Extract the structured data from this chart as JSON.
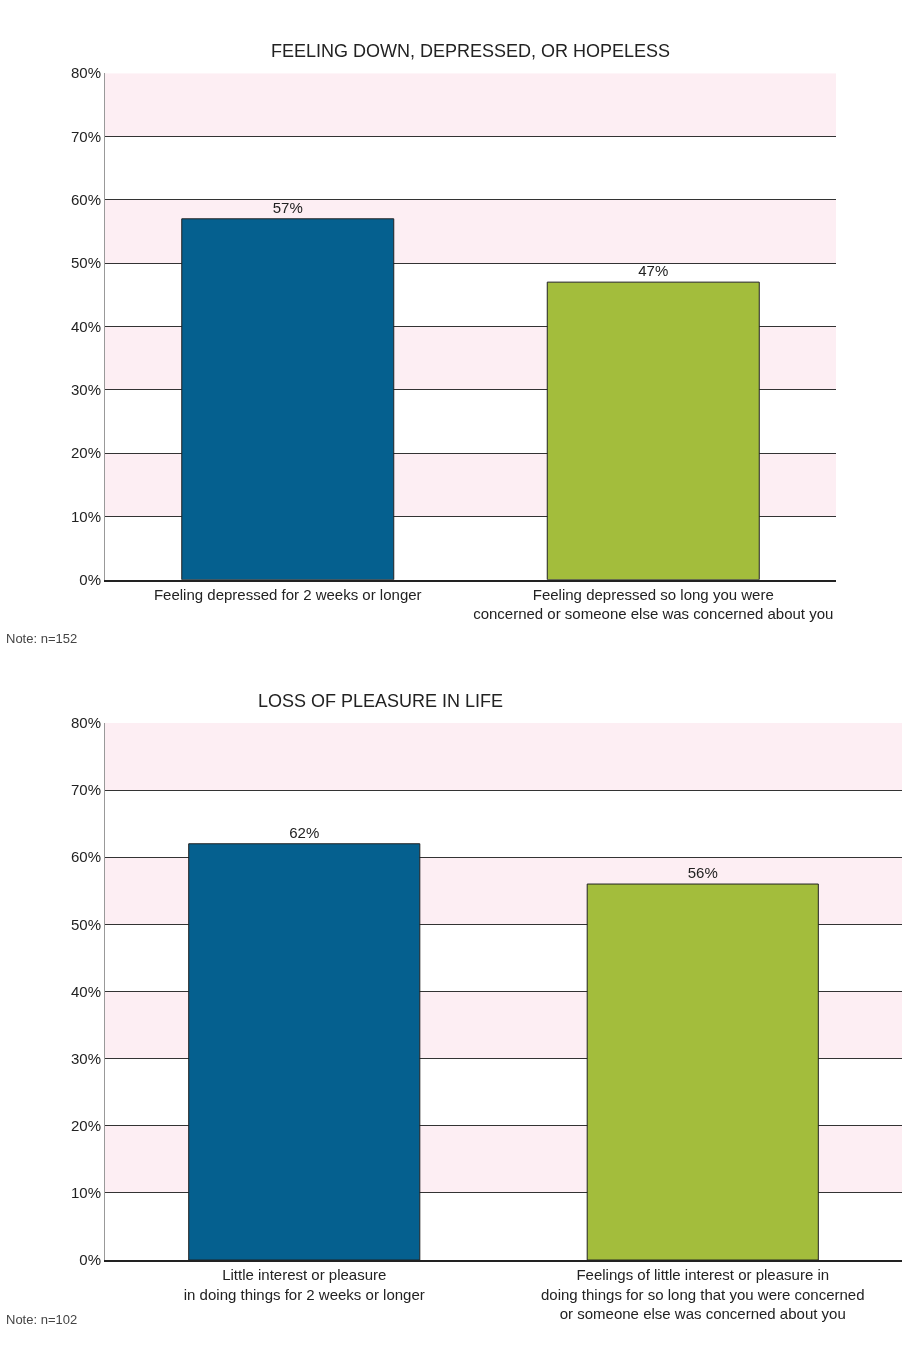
{
  "chart_data": [
    {
      "type": "bar",
      "title": "FEELING DOWN, DEPRESSED, OR HOPELESS",
      "categories": [
        "Feeling depressed for 2 weeks or longer",
        "Feeling depressed so long you were\nconcerned or someone else was concerned about you"
      ],
      "values": [
        57,
        47
      ],
      "colors": [
        "#05608f",
        "#a3bd3c"
      ],
      "value_labels": [
        "57%",
        "47%"
      ],
      "ylim": [
        0,
        80
      ],
      "yticks": [
        {
          "value": 0,
          "label": "0%"
        },
        {
          "value": 10,
          "label": "10%"
        },
        {
          "value": 20,
          "label": "20%"
        },
        {
          "value": 30,
          "label": "30%"
        },
        {
          "value": 40,
          "label": "40%"
        },
        {
          "value": 50,
          "label": "50%"
        },
        {
          "value": 60,
          "label": "60%"
        },
        {
          "value": 70,
          "label": "70%"
        },
        {
          "value": 80,
          "label": "80%"
        }
      ],
      "grid": "y",
      "bands": [
        {
          "axis": "y",
          "from": 10,
          "to": 20,
          "color": "#fdeef3"
        },
        {
          "axis": "y",
          "from": 30,
          "to": 40,
          "color": "#fdeef3"
        },
        {
          "axis": "y",
          "from": 50,
          "to": 60,
          "color": "#fdeef3"
        },
        {
          "axis": "y",
          "from": 70,
          "to": 80,
          "color": "#fdeef3"
        }
      ],
      "annotations": [
        "Note: n=152"
      ]
    },
    {
      "type": "bar",
      "title": "LOSS OF PLEASURE IN LIFE",
      "categories": [
        "Little interest or pleasure\nin doing things for 2 weeks or longer",
        "Feelings of little interest or pleasure in\ndoing things for so long that you were concerned\nor someone else was concerned about you"
      ],
      "values": [
        62,
        56
      ],
      "colors": [
        "#05608f",
        "#a3bd3c"
      ],
      "value_labels": [
        "62%",
        "56%"
      ],
      "ylim": [
        0,
        80
      ],
      "yticks": [
        {
          "value": 0,
          "label": "0%"
        },
        {
          "value": 10,
          "label": "10%"
        },
        {
          "value": 20,
          "label": "20%"
        },
        {
          "value": 30,
          "label": "30%"
        },
        {
          "value": 40,
          "label": "40%"
        },
        {
          "value": 50,
          "label": "50%"
        },
        {
          "value": 60,
          "label": "60%"
        },
        {
          "value": 70,
          "label": "70%"
        },
        {
          "value": 80,
          "label": "80%"
        }
      ],
      "grid": "y",
      "bands": [
        {
          "axis": "y",
          "from": 10,
          "to": 20,
          "color": "#fdeef3"
        },
        {
          "axis": "y",
          "from": 30,
          "to": 40,
          "color": "#fdeef3"
        },
        {
          "axis": "y",
          "from": 50,
          "to": 60,
          "color": "#fdeef3"
        },
        {
          "axis": "y",
          "from": 70,
          "to": 80,
          "color": "#fdeef3"
        }
      ],
      "annotations": [
        "Note: n=102"
      ]
    }
  ]
}
